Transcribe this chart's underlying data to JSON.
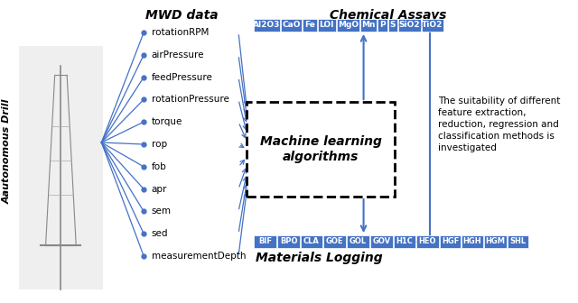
{
  "mwd_title": "MWD data",
  "mwd_features": [
    "rotationRPM",
    "airPressure",
    "feedPressure",
    "rotationPressure",
    "torque",
    "rop",
    "fob",
    "apr",
    "sem",
    "sed",
    "measurementDepth"
  ],
  "chemical_title": "Chemical Assays",
  "chemical_labels": [
    "Al2O3",
    "CaO",
    "Fe",
    "LOI",
    "MgO",
    "Mn",
    "P",
    "S",
    "SiO2",
    "TiO2"
  ],
  "materials_title": "Materials Logging",
  "materials_labels": [
    "BIF",
    "BPO",
    "CLA",
    "GOE",
    "GOL",
    "GOV",
    "H1C",
    "HEO",
    "HGF",
    "HGH",
    "HGM",
    "SHL"
  ],
  "ml_box_text": "Machine learning\nalgorithms",
  "drill_label": "Aautonomous Drill",
  "side_text": "The suitability of different\nfeature extraction,\nreduction, regression and\nclassification methods is\ninvestigated",
  "box_color": "#4472C4",
  "box_text_color": "#ffffff",
  "arrow_color": "#4472C4",
  "line_color": "#4472C4",
  "bg_color": "#ffffff",
  "title_fontsize": 10,
  "feature_fontsize": 7.5,
  "ml_fontsize": 10,
  "side_text_fontsize": 7.5,
  "chem_label_fontsize": 6.5,
  "mat_label_fontsize": 6.0,
  "mat_title_fontsize": 10,
  "drill_label_fontsize": 8
}
